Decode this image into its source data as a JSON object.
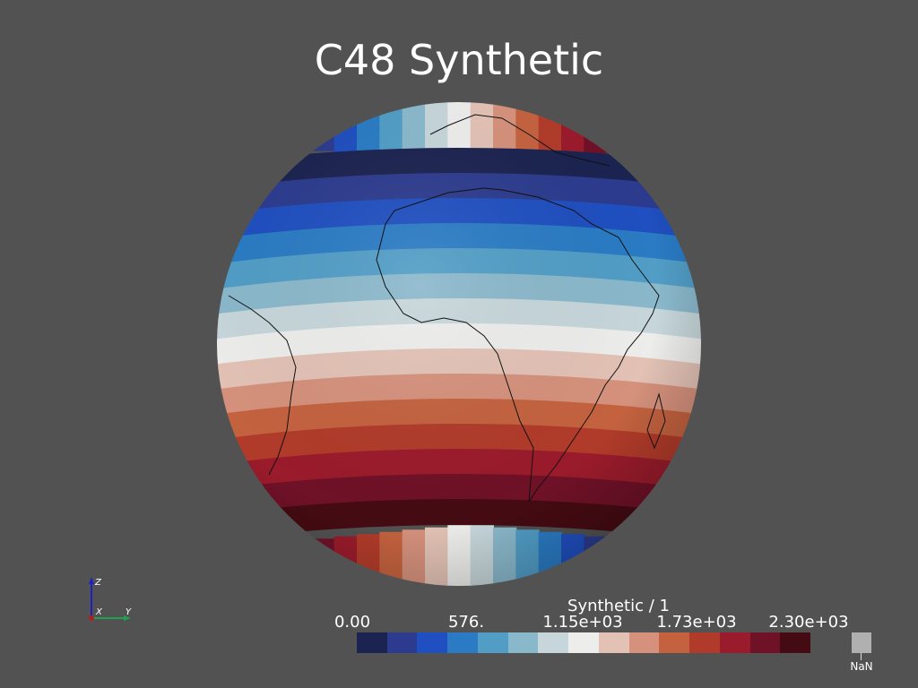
{
  "title": "C48 Synthetic",
  "colorbar": {
    "title": "Synthetic / 1",
    "tick_labels": [
      "0.00",
      "576.",
      "1.15e+03",
      "1.73e+03",
      "2.30e+03"
    ],
    "tick_values": [
      0,
      576,
      1150,
      1730,
      2300
    ],
    "range": [
      0,
      2300
    ],
    "colors": [
      "#1b2350",
      "#2c3b8e",
      "#1f4fc0",
      "#2a7bc4",
      "#519dc6",
      "#8ab8cb",
      "#c6d6da",
      "#ededec",
      "#e3c2b5",
      "#d5917c",
      "#c4623f",
      "#b13b2a",
      "#9a1b2b",
      "#6f1127",
      "#450b12"
    ],
    "nan_label": "NaN",
    "nan_color": "#b0b0b0"
  },
  "axes": {
    "x_label": "X",
    "y_label": "Y",
    "z_label": "Z"
  }
}
